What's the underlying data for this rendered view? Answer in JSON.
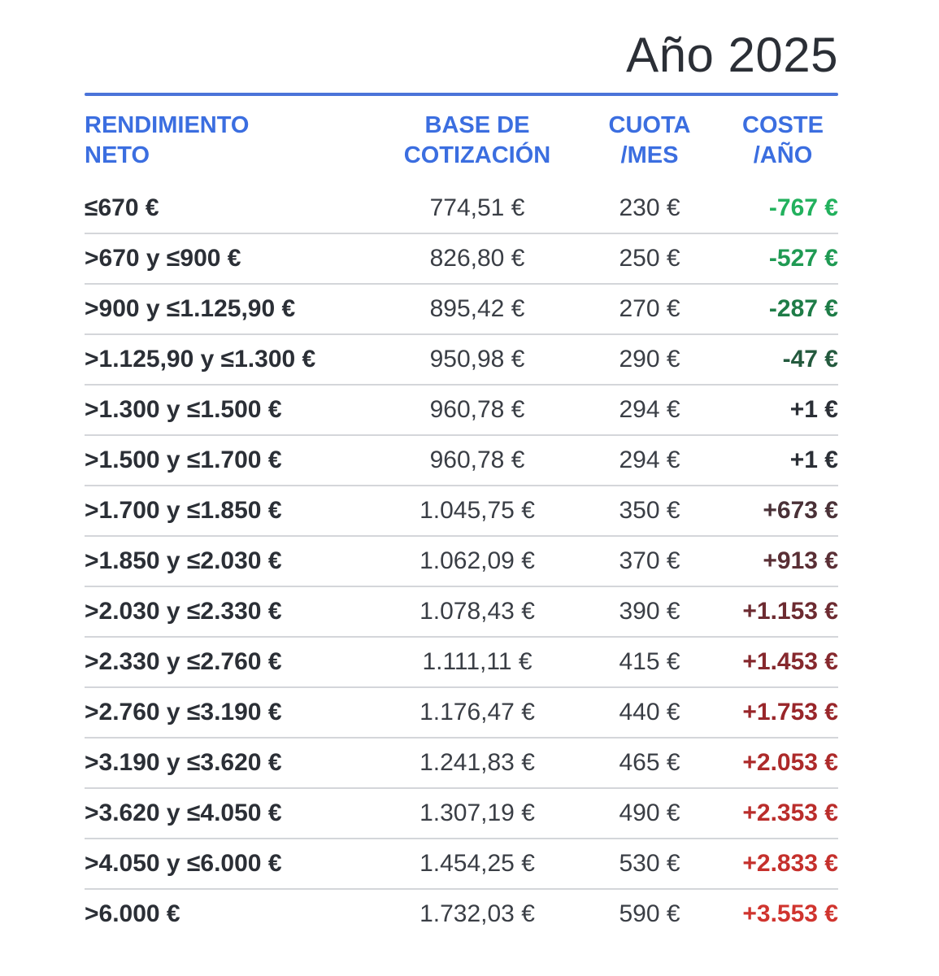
{
  "title": "Año 2025",
  "headers": {
    "col1": [
      "RENDIMIENTO",
      "NETO"
    ],
    "col2": [
      "BASE DE",
      "COTIZACIÓN"
    ],
    "col3": [
      "CUOTA",
      "/MES"
    ],
    "col4": [
      "COSTE",
      "/AÑO"
    ]
  },
  "colors": {
    "accent": "#3b6ee0",
    "rule": "#4b74d9"
  },
  "rows": [
    {
      "range": "≤670 €",
      "base": "774,51 €",
      "cuota": "230 €",
      "coste": "-767 €",
      "coste_color": "#22b15d"
    },
    {
      "range": ">670 y ≤900 €",
      "base": "826,80 €",
      "cuota": "250 €",
      "coste": "-527 €",
      "coste_color": "#1f9a53"
    },
    {
      "range": ">900 y ≤1.125,90 €",
      "base": "895,42 €",
      "cuota": "270 €",
      "coste": "-287 €",
      "coste_color": "#1e7c47"
    },
    {
      "range": ">1.125,90 y ≤1.300 €",
      "base": "950,98 €",
      "cuota": "290 €",
      "coste": "-47 €",
      "coste_color": "#245a3e"
    },
    {
      "range": ">1.300 y ≤1.500 €",
      "base": "960,78 €",
      "cuota": "294 €",
      "coste": "+1 €",
      "coste_color": "#2b2f36"
    },
    {
      "range": ">1.500 y ≤1.700 €",
      "base": "960,78 €",
      "cuota": "294 €",
      "coste": "+1 €",
      "coste_color": "#2b2f36"
    },
    {
      "range": ">1.700 y ≤1.850 €",
      "base": "1.045,75 €",
      "cuota": "350 €",
      "coste": "+673 €",
      "coste_color": "#4a3137"
    },
    {
      "range": ">1.850 y ≤2.030 €",
      "base": "1.062,09 €",
      "cuota": "370 €",
      "coste": "+913 €",
      "coste_color": "#5a2f35"
    },
    {
      "range": ">2.030 y ≤2.330 €",
      "base": "1.078,43 €",
      "cuota": "390 €",
      "coste": "+1.153 €",
      "coste_color": "#6d2b31"
    },
    {
      "range": ">2.330 y ≤2.760 €",
      "base": "1.111,11 €",
      "cuota": "415 €",
      "coste": "+1.453 €",
      "coste_color": "#86282d"
    },
    {
      "range": ">2.760 y ≤3.190 €",
      "base": "1.176,47 €",
      "cuota": "440 €",
      "coste": "+1.753 €",
      "coste_color": "#99262a"
    },
    {
      "range": ">3.190 y ≤3.620 €",
      "base": "1.241,83 €",
      "cuota": "465 €",
      "coste": "+2.053 €",
      "coste_color": "#ad2a2a"
    },
    {
      "range": ">3.620 y ≤4.050 €",
      "base": "1.307,19 €",
      "cuota": "490 €",
      "coste": "+2.353 €",
      "coste_color": "#ba2d2b"
    },
    {
      "range": ">4.050 y ≤6.000 €",
      "base": "1.454,25 €",
      "cuota": "530 €",
      "coste": "+2.833 €",
      "coste_color": "#c5302c"
    },
    {
      "range": ">6.000 €",
      "base": "1.732,03 €",
      "cuota": "590 €",
      "coste": "+3.553 €",
      "coste_color": "#d0342e"
    }
  ]
}
